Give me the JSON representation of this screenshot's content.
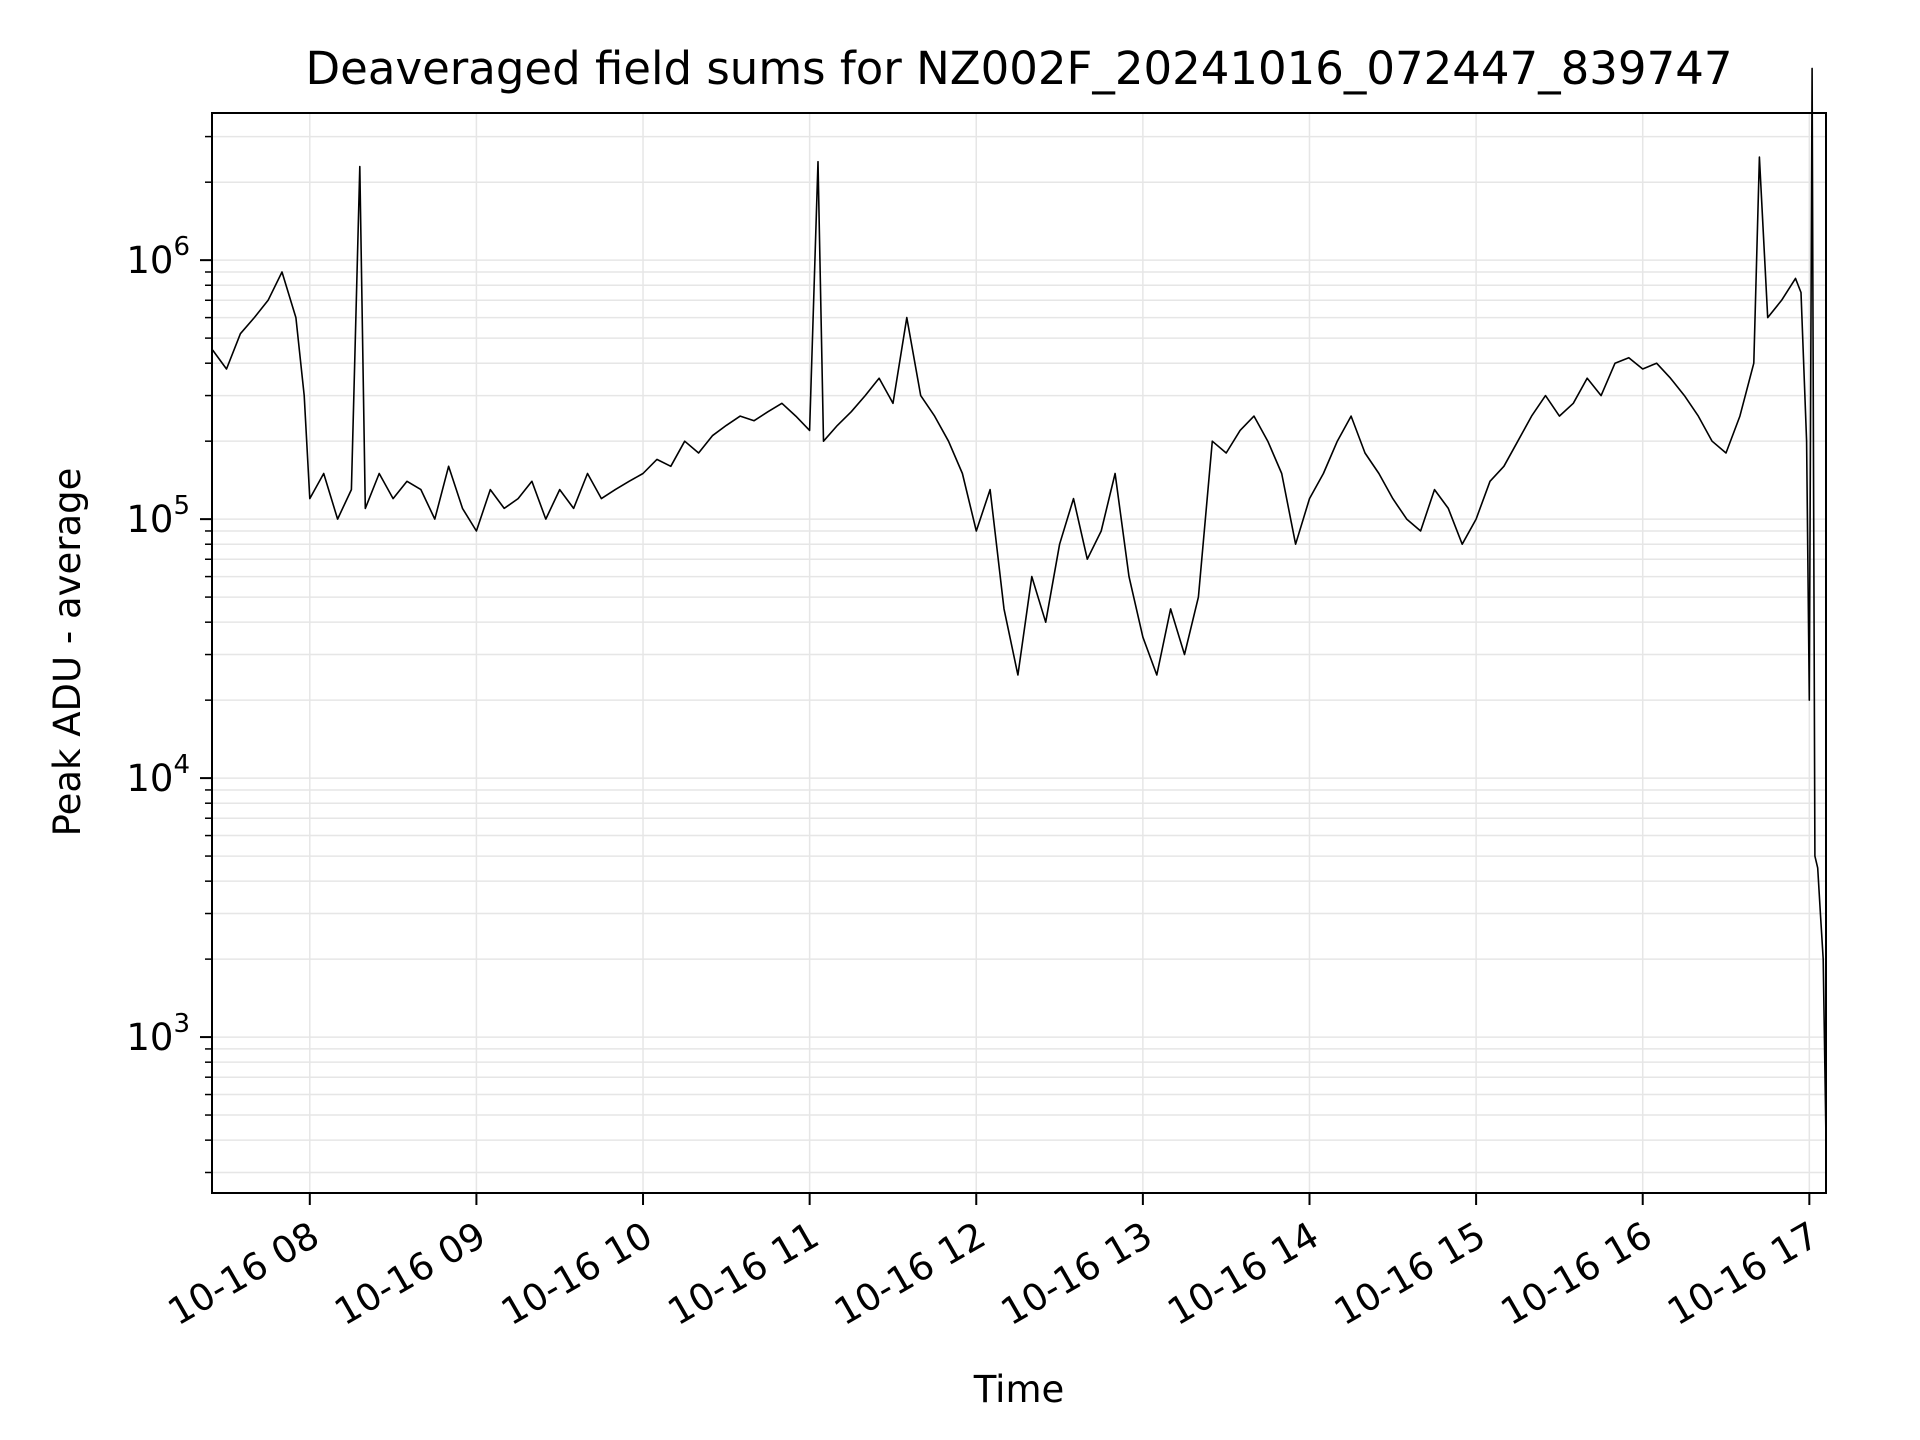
{
  "chart_data": {
    "type": "line",
    "title": "Deaveraged field sums for NZ002F_20241016_072447_839747",
    "xlabel": "Time",
    "ylabel": "Peak ADU - average",
    "yscale": "log",
    "grid": true,
    "xlim": [
      "2024-10-16 07:24:47",
      "2024-10-16 17:06:00"
    ],
    "ylim": [
      250,
      3700000
    ],
    "xticks": [
      {
        "value": "2024-10-16 08:00",
        "label": "10-16 08"
      },
      {
        "value": "2024-10-16 09:00",
        "label": "10-16 09"
      },
      {
        "value": "2024-10-16 10:00",
        "label": "10-16 10"
      },
      {
        "value": "2024-10-16 11:00",
        "label": "10-16 11"
      },
      {
        "value": "2024-10-16 12:00",
        "label": "10-16 12"
      },
      {
        "value": "2024-10-16 13:00",
        "label": "10-16 13"
      },
      {
        "value": "2024-10-16 14:00",
        "label": "10-16 14"
      },
      {
        "value": "2024-10-16 15:00",
        "label": "10-16 15"
      },
      {
        "value": "2024-10-16 16:00",
        "label": "10-16 16"
      },
      {
        "value": "2024-10-16 17:00",
        "label": "10-16 17"
      }
    ],
    "yticks": [
      {
        "value": 1000,
        "base": "10",
        "exp": "3"
      },
      {
        "value": 10000,
        "base": "10",
        "exp": "4"
      },
      {
        "value": 100000,
        "base": "10",
        "exp": "5"
      },
      {
        "value": 1000000,
        "base": "10",
        "exp": "6"
      }
    ],
    "line_color": "#000000",
    "grid_color": "#e6e6e6",
    "x": [
      "2024-10-16 07:25",
      "2024-10-16 07:30",
      "2024-10-16 07:35",
      "2024-10-16 07:40",
      "2024-10-16 07:45",
      "2024-10-16 07:50",
      "2024-10-16 07:55",
      "2024-10-16 07:58",
      "2024-10-16 08:00",
      "2024-10-16 08:05",
      "2024-10-16 08:10",
      "2024-10-16 08:15",
      "2024-10-16 08:18",
      "2024-10-16 08:20",
      "2024-10-16 08:25",
      "2024-10-16 08:30",
      "2024-10-16 08:35",
      "2024-10-16 08:40",
      "2024-10-16 08:45",
      "2024-10-16 08:50",
      "2024-10-16 08:55",
      "2024-10-16 09:00",
      "2024-10-16 09:05",
      "2024-10-16 09:10",
      "2024-10-16 09:15",
      "2024-10-16 09:20",
      "2024-10-16 09:25",
      "2024-10-16 09:30",
      "2024-10-16 09:35",
      "2024-10-16 09:40",
      "2024-10-16 09:45",
      "2024-10-16 09:50",
      "2024-10-16 09:55",
      "2024-10-16 10:00",
      "2024-10-16 10:05",
      "2024-10-16 10:10",
      "2024-10-16 10:15",
      "2024-10-16 10:20",
      "2024-10-16 10:25",
      "2024-10-16 10:30",
      "2024-10-16 10:35",
      "2024-10-16 10:40",
      "2024-10-16 10:45",
      "2024-10-16 10:50",
      "2024-10-16 10:55",
      "2024-10-16 11:00",
      "2024-10-16 11:03",
      "2024-10-16 11:05",
      "2024-10-16 11:10",
      "2024-10-16 11:15",
      "2024-10-16 11:20",
      "2024-10-16 11:25",
      "2024-10-16 11:30",
      "2024-10-16 11:35",
      "2024-10-16 11:40",
      "2024-10-16 11:45",
      "2024-10-16 11:50",
      "2024-10-16 11:55",
      "2024-10-16 12:00",
      "2024-10-16 12:05",
      "2024-10-16 12:10",
      "2024-10-16 12:15",
      "2024-10-16 12:20",
      "2024-10-16 12:25",
      "2024-10-16 12:30",
      "2024-10-16 12:35",
      "2024-10-16 12:40",
      "2024-10-16 12:45",
      "2024-10-16 12:50",
      "2024-10-16 12:55",
      "2024-10-16 13:00",
      "2024-10-16 13:05",
      "2024-10-16 13:10",
      "2024-10-16 13:15",
      "2024-10-16 13:20",
      "2024-10-16 13:25",
      "2024-10-16 13:30",
      "2024-10-16 13:35",
      "2024-10-16 13:40",
      "2024-10-16 13:45",
      "2024-10-16 13:50",
      "2024-10-16 13:55",
      "2024-10-16 14:00",
      "2024-10-16 14:05",
      "2024-10-16 14:10",
      "2024-10-16 14:15",
      "2024-10-16 14:20",
      "2024-10-16 14:25",
      "2024-10-16 14:30",
      "2024-10-16 14:35",
      "2024-10-16 14:40",
      "2024-10-16 14:45",
      "2024-10-16 14:50",
      "2024-10-16 14:55",
      "2024-10-16 15:00",
      "2024-10-16 15:05",
      "2024-10-16 15:10",
      "2024-10-16 15:15",
      "2024-10-16 15:20",
      "2024-10-16 15:25",
      "2024-10-16 15:30",
      "2024-10-16 15:35",
      "2024-10-16 15:40",
      "2024-10-16 15:45",
      "2024-10-16 15:50",
      "2024-10-16 15:55",
      "2024-10-16 16:00",
      "2024-10-16 16:05",
      "2024-10-16 16:10",
      "2024-10-16 16:15",
      "2024-10-16 16:20",
      "2024-10-16 16:25",
      "2024-10-16 16:30",
      "2024-10-16 16:35",
      "2024-10-16 16:40",
      "2024-10-16 16:42",
      "2024-10-16 16:45",
      "2024-10-16 16:50",
      "2024-10-16 16:55",
      "2024-10-16 16:57",
      "2024-10-16 16:59",
      "2024-10-16 17:00",
      "2024-10-16 17:01",
      "2024-10-16 17:02",
      "2024-10-16 17:03",
      "2024-10-16 17:04",
      "2024-10-16 17:05",
      "2024-10-16 17:06"
    ],
    "values": [
      450000,
      380000,
      520000,
      600000,
      700000,
      900000,
      600000,
      300000,
      120000,
      150000,
      100000,
      130000,
      2300000,
      110000,
      150000,
      120000,
      140000,
      130000,
      100000,
      160000,
      110000,
      90000,
      130000,
      110000,
      120000,
      140000,
      100000,
      130000,
      110000,
      150000,
      120000,
      130000,
      140000,
      150000,
      170000,
      160000,
      200000,
      180000,
      210000,
      230000,
      250000,
      240000,
      260000,
      280000,
      250000,
      220000,
      2400000,
      200000,
      230000,
      260000,
      300000,
      350000,
      280000,
      600000,
      300000,
      250000,
      200000,
      150000,
      90000,
      130000,
      45000,
      25000,
      60000,
      40000,
      80000,
      120000,
      70000,
      90000,
      150000,
      60000,
      35000,
      25000,
      45000,
      30000,
      50000,
      200000,
      180000,
      220000,
      250000,
      200000,
      150000,
      80000,
      120000,
      150000,
      200000,
      250000,
      180000,
      150000,
      120000,
      100000,
      90000,
      130000,
      110000,
      80000,
      100000,
      140000,
      160000,
      200000,
      250000,
      300000,
      250000,
      280000,
      350000,
      300000,
      400000,
      420000,
      380000,
      400000,
      350000,
      300000,
      250000,
      200000,
      180000,
      250000,
      400000,
      2500000,
      600000,
      700000,
      850000,
      750000,
      200000,
      20000,
      5500000,
      5000,
      4500,
      3000,
      2000,
      400
    ]
  }
}
